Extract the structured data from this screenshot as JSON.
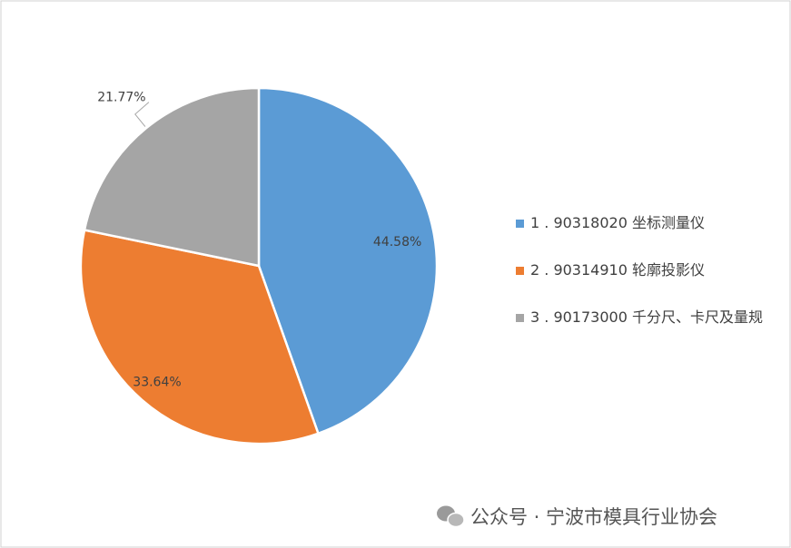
{
  "chart_data": {
    "type": "pie",
    "categories": [
      "1 . 90318020 坐标测量仪",
      "2 . 90314910 轮廓投影仪",
      "3 . 90173000 千分尺、卡尺及量规"
    ],
    "values": [
      44.58,
      33.64,
      21.77
    ],
    "value_labels": [
      "44.58%",
      "33.64%",
      "21.77%"
    ],
    "colors": [
      "#5b9bd5",
      "#ed7d31",
      "#a5a5a5"
    ],
    "legend": "right"
  },
  "watermark": "公众号 · 宁波市模具行业协会"
}
